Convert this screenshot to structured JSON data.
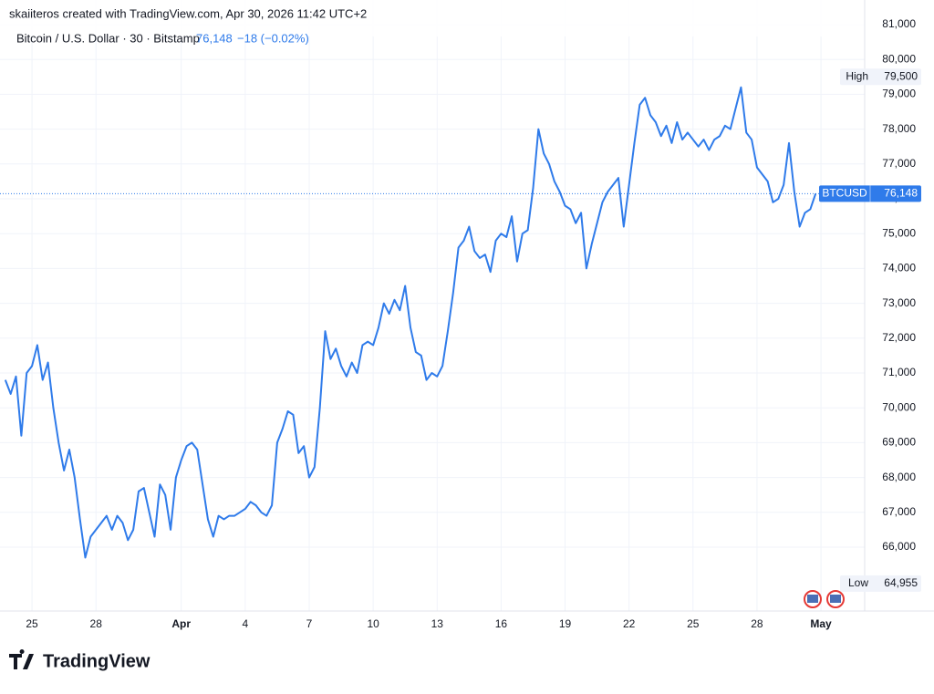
{
  "header": {
    "credit": "skaiiteros created with TradingView.com, Apr 30, 2026 11:42 UTC+2",
    "symbol": "Bitcoin / U.S. Dollar · 30 · Bitstamp",
    "price": "76,148",
    "change": "−18 (−0.02%)"
  },
  "logo": "TradingView",
  "chart_data": {
    "type": "line",
    "series": [
      {
        "name": "BTCUSD",
        "color": "#2f7bea",
        "x": [
          23.75,
          24,
          24.25,
          24.5,
          24.75,
          25,
          25.25,
          25.5,
          25.75,
          26,
          26.25,
          26.5,
          26.75,
          27,
          27.25,
          27.5,
          27.75,
          28,
          28.25,
          28.5,
          28.75,
          29,
          29.25,
          29.5,
          29.75,
          30,
          30.25,
          30.5,
          30.75,
          31,
          31.25,
          31.5,
          31.75,
          32,
          32.25,
          32.5,
          32.75,
          33,
          33.25,
          33.5,
          33.75,
          34,
          34.25,
          34.5,
          34.75,
          35,
          35.25,
          35.5,
          35.75,
          36,
          36.25,
          36.5,
          36.75,
          37,
          37.25,
          37.5,
          37.75,
          38,
          38.25,
          38.5,
          38.75,
          39,
          39.25,
          39.5,
          39.75,
          40,
          40.25,
          40.5,
          40.75,
          41,
          41.25,
          41.5,
          41.75,
          42,
          42.25,
          42.5,
          42.75,
          43,
          43.25,
          43.5,
          43.75,
          44,
          44.25,
          44.5,
          44.75,
          45,
          45.25,
          45.5,
          45.75,
          46,
          46.25,
          46.5,
          46.75,
          47,
          47.25,
          47.5,
          47.75,
          48,
          48.25,
          48.5,
          48.75,
          49,
          49.25,
          49.5,
          49.75,
          50,
          50.25,
          50.5,
          50.75,
          51,
          51.25,
          51.5,
          51.75,
          52,
          52.25,
          52.5,
          52.75,
          53,
          53.25,
          53.5,
          53.75,
          54,
          54.25,
          54.5,
          54.75,
          55,
          55.25,
          55.5,
          55.75,
          56,
          56.25,
          56.5,
          56.75,
          57,
          57.25,
          57.5,
          57.75,
          58,
          58.25,
          58.5,
          58.75,
          59,
          59.25,
          59.5,
          59.75,
          60,
          60.25,
          60.5,
          60.75,
          61,
          61.25,
          61.5,
          61.75
        ],
        "values": [
          70800,
          70400,
          70900,
          69200,
          71000,
          71200,
          71800,
          70800,
          71300,
          70000,
          69000,
          68200,
          68800,
          68000,
          66800,
          65700,
          66300,
          66500,
          66700,
          66900,
          66500,
          66900,
          66700,
          66200,
          66500,
          67600,
          67700,
          67000,
          66300,
          67800,
          67500,
          66500,
          68000,
          68500,
          68900,
          69000,
          68800,
          67800,
          66800,
          66300,
          66900,
          66800,
          66900,
          66900,
          67000,
          67100,
          67300,
          67200,
          67000,
          66900,
          67200,
          69000,
          69400,
          69900,
          69800,
          68700,
          68900,
          68000,
          68300,
          70000,
          72200,
          71400,
          71700,
          71200,
          70900,
          71300,
          71000,
          71800,
          71900,
          71800,
          72300,
          73000,
          72700,
          73100,
          72800,
          73500,
          72300,
          71600,
          71500,
          70800,
          71000,
          70900,
          71200,
          72200,
          73300,
          74600,
          74800,
          75200,
          74500,
          74300,
          74400,
          73900,
          74800,
          75000,
          74900,
          75500,
          74200,
          75000,
          75100,
          76300,
          78000,
          77300,
          77000,
          76500,
          76200,
          75800,
          75700,
          75300,
          75600,
          74000,
          74700,
          75300,
          75900,
          76200,
          76400,
          76600,
          75200,
          76400,
          77600,
          78700,
          78900,
          78400,
          78200,
          77800,
          78100,
          77600,
          78200,
          77700,
          77900,
          77700,
          77500,
          77700,
          77400,
          77700,
          77800,
          78100,
          78000,
          78600,
          79200,
          77900,
          77700,
          76900,
          76700,
          76500,
          75900,
          76000,
          76400,
          77600,
          76200,
          75200,
          75600,
          75700,
          76148
        ]
      }
    ],
    "xlim": [
      23.5,
      64.05
    ],
    "xticks": [
      25,
      28,
      {
        "value": 32,
        "label": "Apr"
      },
      {
        "value": 35,
        "label": "4"
      },
      {
        "value": 38,
        "label": "7"
      },
      {
        "value": 41,
        "label": "10"
      },
      {
        "value": 44,
        "label": "13"
      },
      {
        "value": 47,
        "label": "16"
      },
      {
        "value": 50,
        "label": "19"
      },
      {
        "value": 53,
        "label": "22"
      },
      {
        "value": 56,
        "label": "25"
      },
      {
        "value": 59,
        "label": "28"
      },
      {
        "value": 62,
        "label": "May"
      }
    ],
    "ylim": [
      64167,
      81707
    ],
    "yticks": [
      {
        "value": 66000,
        "label": "66,000"
      },
      {
        "value": 67000,
        "label": "67,000"
      },
      {
        "value": 68000,
        "label": "68,000"
      },
      {
        "value": 69000,
        "label": "69,000"
      },
      {
        "value": 70000,
        "label": "70,000"
      },
      {
        "value": 71000,
        "label": "71,000"
      },
      {
        "value": 72000,
        "label": "72,000"
      },
      {
        "value": 73000,
        "label": "73,000"
      },
      {
        "value": 74000,
        "label": "74,000"
      },
      {
        "value": 75000,
        "label": "75,000"
      },
      {
        "value": 76000,
        "label": "76,000"
      },
      {
        "value": 77000,
        "label": "77,000"
      },
      {
        "value": 78000,
        "label": "78,000"
      },
      {
        "value": 79000,
        "label": "79,000"
      },
      {
        "value": 80000,
        "label": "80,000"
      },
      {
        "value": 81000,
        "label": "81,000"
      }
    ],
    "grid": true,
    "last_price": {
      "symbol": "BTCUSD",
      "value": 76148,
      "value_label": "76,148"
    },
    "annotations": [
      {
        "text": "High",
        "value": 79500,
        "value_label": "79,500"
      },
      {
        "text": "Low",
        "value": 64955,
        "value_label": "64,955"
      }
    ]
  }
}
